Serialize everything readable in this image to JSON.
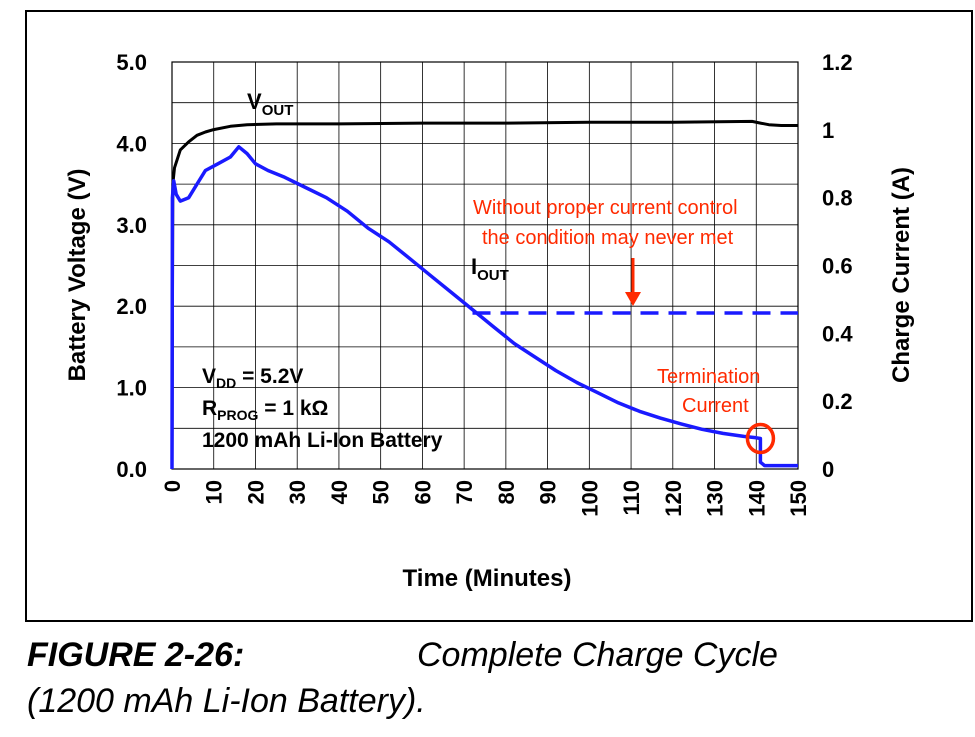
{
  "chart_data": {
    "type": "line",
    "xlabel": "Time (Minutes)",
    "ylabel": "Battery Voltage (V)",
    "y2label": "Charge Current (A)",
    "xlim": [
      0,
      150
    ],
    "ylim": [
      0,
      5
    ],
    "y2lim": [
      0,
      1.2
    ],
    "x_ticks": [
      "0",
      "10",
      "20",
      "30",
      "40",
      "50",
      "60",
      "70",
      "80",
      "90",
      "100",
      "110",
      "120",
      "130",
      "140",
      "150"
    ],
    "y_ticks": [
      "0.0",
      "1.0",
      "2.0",
      "3.0",
      "4.0",
      "5.0"
    ],
    "y2_ticks": [
      "0",
      "0.2",
      "0.4",
      "0.6",
      "0.8",
      "1",
      "1.2"
    ],
    "grid": true,
    "colors": {
      "vout": "#000000",
      "iout": "#1a1aff",
      "annotation": "#ff2a00"
    },
    "series": [
      {
        "name": "VOUT",
        "axis": "left",
        "points": [
          [
            0,
            0
          ],
          [
            0.2,
            3.5
          ],
          [
            0.6,
            3.7
          ],
          [
            2,
            3.92
          ],
          [
            4,
            4.02
          ],
          [
            6,
            4.1
          ],
          [
            8,
            4.14
          ],
          [
            10,
            4.17
          ],
          [
            14,
            4.21
          ],
          [
            18,
            4.23
          ],
          [
            25,
            4.24
          ],
          [
            40,
            4.24
          ],
          [
            60,
            4.25
          ],
          [
            80,
            4.25
          ],
          [
            100,
            4.26
          ],
          [
            120,
            4.26
          ],
          [
            139,
            4.27
          ],
          [
            141,
            4.25
          ],
          [
            143,
            4.23
          ],
          [
            146,
            4.22
          ],
          [
            150,
            4.22
          ]
        ]
      },
      {
        "name": "IOUT",
        "axis": "right",
        "points": [
          [
            0,
            0
          ],
          [
            0.1,
            0.8
          ],
          [
            0.4,
            0.85
          ],
          [
            1,
            0.81
          ],
          [
            2,
            0.79
          ],
          [
            4,
            0.8
          ],
          [
            6,
            0.84
          ],
          [
            8,
            0.88
          ],
          [
            11,
            0.9
          ],
          [
            14,
            0.92
          ],
          [
            16,
            0.95
          ],
          [
            18,
            0.93
          ],
          [
            20,
            0.9
          ],
          [
            23,
            0.88
          ],
          [
            27,
            0.86
          ],
          [
            32,
            0.83
          ],
          [
            37,
            0.8
          ],
          [
            42,
            0.76
          ],
          [
            47,
            0.71
          ],
          [
            52,
            0.67
          ],
          [
            57,
            0.62
          ],
          [
            62,
            0.57
          ],
          [
            67,
            0.52
          ],
          [
            72,
            0.47
          ],
          [
            77,
            0.42
          ],
          [
            82,
            0.37
          ],
          [
            87,
            0.33
          ],
          [
            92,
            0.29
          ],
          [
            97,
            0.255
          ],
          [
            102,
            0.225
          ],
          [
            107,
            0.195
          ],
          [
            112,
            0.17
          ],
          [
            117,
            0.15
          ],
          [
            122,
            0.133
          ],
          [
            127,
            0.117
          ],
          [
            132,
            0.105
          ],
          [
            137,
            0.096
          ],
          [
            140,
            0.092
          ],
          [
            141,
            0.09
          ],
          [
            141,
            0.02
          ],
          [
            142,
            0.01
          ],
          [
            150,
            0.01
          ]
        ]
      },
      {
        "name": "",
        "axis": "right",
        "style": "dashed",
        "points": [
          [
            72,
            0.46
          ],
          [
            150,
            0.46
          ]
        ]
      }
    ],
    "labels": {
      "vout_main": "V",
      "vout_sub": "OUT",
      "iout_main": "I",
      "iout_sub": "OUT",
      "vdd_main": "V",
      "vdd_sub": "DD",
      "vdd_rest": " = 5.2V",
      "rprog_main": "R",
      "rprog_sub": "PROG",
      "rprog_rest": " = 1 kΩ",
      "battery": "1200 mAh Li-Ion Battery",
      "warning_line1": "Without proper current control",
      "warning_line2": "the condition may never met",
      "termination_line1": "Termination",
      "termination_line2": "Current"
    },
    "marker": {
      "x": 141,
      "y2": 0.09
    }
  },
  "caption": {
    "number": "FIGURE 2-26:",
    "title": "Complete Charge Cycle",
    "line2": "(1200 mAh Li-Ion Battery)."
  }
}
